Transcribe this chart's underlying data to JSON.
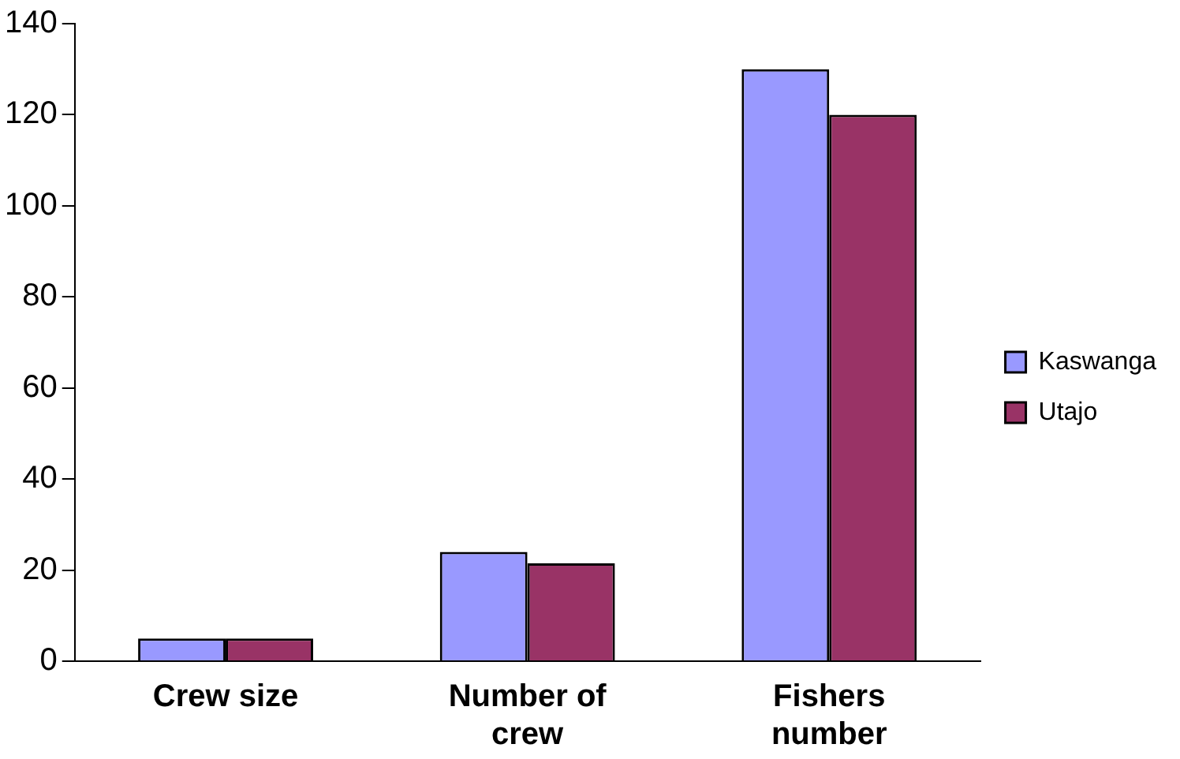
{
  "chart_data": {
    "type": "bar",
    "categories": [
      "Crew size",
      "Number of crew",
      "Fishers number"
    ],
    "series": [
      {
        "name": "Kaswanga",
        "color": "#9999ff",
        "values": [
          5,
          24,
          130
        ]
      },
      {
        "name": "Utajo",
        "color": "#993366",
        "values": [
          5,
          21.5,
          120
        ]
      }
    ],
    "ylim": [
      0,
      140
    ],
    "yticks": [
      0,
      20,
      40,
      60,
      80,
      100,
      120,
      140
    ],
    "grid": false,
    "legend": "right"
  }
}
